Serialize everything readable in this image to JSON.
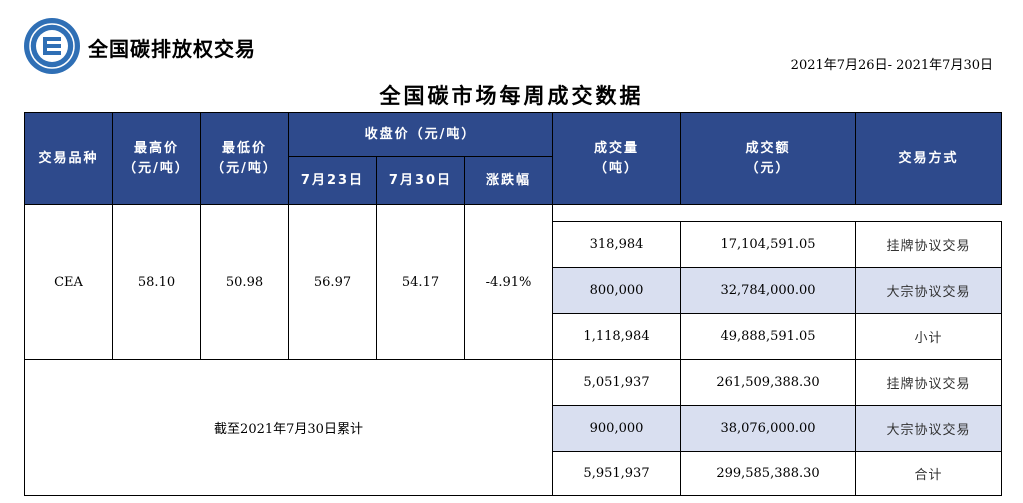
{
  "header": {
    "brand": "全国碳排放权交易",
    "date_range": "2021年7月26日- 2021年7月30日",
    "title": "全国碳市场每周成交数据"
  },
  "columns": {
    "product": "交易品种",
    "high": [
      "最高价",
      "（元/吨）"
    ],
    "low": [
      "最低价",
      "（元/吨）"
    ],
    "close": "收盘价（元/吨）",
    "close_prev": "7月23日",
    "close_curr": "7月30日",
    "change": "涨跌幅",
    "volume": [
      "成交量",
      "（吨）"
    ],
    "amount": [
      "成交额",
      "（元）"
    ],
    "mode": "交易方式"
  },
  "weekly": {
    "product": "CEA",
    "high": "58.10",
    "low": "50.98",
    "close_prev": "56.97",
    "close_curr": "54.17",
    "change": "-4.91%",
    "rows": [
      {
        "volume": "318,984",
        "amount": "17,104,591.05",
        "mode": "挂牌协议交易"
      },
      {
        "volume": "800,000",
        "amount": "32,784,000.00",
        "mode": "大宗协议交易"
      },
      {
        "volume": "1,118,984",
        "amount": "49,888,591.05",
        "mode": "小计"
      }
    ]
  },
  "cumulative": {
    "label": "截至2021年7月30日累计",
    "rows": [
      {
        "volume": "5,051,937",
        "amount": "261,509,388.30",
        "mode": "挂牌协议交易"
      },
      {
        "volume": "900,000",
        "amount": "38,076,000.00",
        "mode": "大宗协议交易"
      },
      {
        "volume": "5,951,937",
        "amount": "299,585,388.30",
        "mode": "合计"
      }
    ]
  },
  "colors": {
    "header_bg": "#2e4a8c",
    "shade": "#d9dff0",
    "logo": "#2f6fb5"
  }
}
